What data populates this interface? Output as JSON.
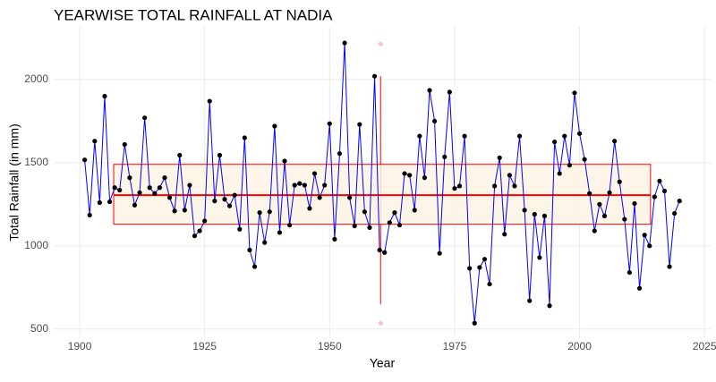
{
  "chart_data": {
    "type": "line",
    "title": "YEARWISE TOTAL RAINFALL AT NADIA",
    "x_label": "Year",
    "y_label": "Total Rainfall (in mm)",
    "x": [
      1901,
      1902,
      1903,
      1904,
      1905,
      1906,
      1907,
      1908,
      1909,
      1910,
      1911,
      1912,
      1913,
      1914,
      1915,
      1916,
      1917,
      1918,
      1919,
      1920,
      1921,
      1922,
      1923,
      1924,
      1925,
      1926,
      1927,
      1928,
      1929,
      1930,
      1931,
      1932,
      1933,
      1934,
      1935,
      1936,
      1937,
      1938,
      1939,
      1940,
      1941,
      1942,
      1943,
      1944,
      1945,
      1946,
      1947,
      1948,
      1949,
      1950,
      1951,
      1952,
      1953,
      1954,
      1955,
      1956,
      1957,
      1958,
      1959,
      1960,
      1961,
      1962,
      1963,
      1964,
      1965,
      1966,
      1967,
      1968,
      1969,
      1970,
      1971,
      1972,
      1973,
      1974,
      1975,
      1976,
      1977,
      1978,
      1979,
      1980,
      1981,
      1982,
      1983,
      1984,
      1985,
      1986,
      1987,
      1988,
      1989,
      1990,
      1991,
      1992,
      1993,
      1994,
      1995,
      1996,
      1997,
      1998,
      1999,
      2000,
      2001,
      2002,
      2003,
      2004,
      2005,
      2006,
      2007,
      2008,
      2009,
      2010,
      2011,
      2012,
      2013,
      2014,
      2015,
      2016,
      2017,
      2018,
      2019,
      2020
    ],
    "series": [
      {
        "color": "#0000ff",
        "marker_color": "#000000",
        "values": [
          1517,
          1185,
          1630,
          1260,
          1900,
          1265,
          1350,
          1335,
          1610,
          1410,
          1245,
          1320,
          1770,
          1350,
          1315,
          1350,
          1410,
          1290,
          1210,
          1545,
          1215,
          1365,
          1060,
          1090,
          1150,
          1870,
          1270,
          1545,
          1280,
          1240,
          1305,
          1100,
          1650,
          975,
          875,
          1200,
          1020,
          1205,
          1720,
          1080,
          1510,
          1125,
          1365,
          1375,
          1365,
          1225,
          1435,
          1290,
          1365,
          1735,
          1040,
          1555,
          2220,
          1290,
          1120,
          1730,
          1205,
          1110,
          2020,
          975,
          960,
          1140,
          1200,
          1125,
          1435,
          1425,
          1215,
          1660,
          1410,
          1935,
          1750,
          955,
          1535,
          1925,
          1345,
          1360,
          1660,
          865,
          535,
          870,
          920,
          770,
          1360,
          1530,
          1070,
          1425,
          1360,
          1660,
          1215,
          670,
          1190,
          930,
          1180,
          640,
          1625,
          1435,
          1660,
          1485,
          1920,
          1675,
          1520,
          1315,
          1090,
          1250,
          1180,
          1320,
          1630,
          1385,
          1160,
          840,
          1255,
          745,
          1065,
          1000,
          1295,
          1390,
          1330,
          875,
          1195,
          1270
        ]
      }
    ],
    "boxplot": {
      "x_center": 1960.2,
      "x_range": [
        1906.8,
        2014.2
      ],
      "q1": 1130,
      "median": 1305,
      "q3": 1490,
      "whisker_low": 650,
      "whisker_high": 2020,
      "outliers": [
        2215,
        535
      ],
      "color": "#ff0000",
      "fill": "#fdf3e3",
      "outlier_color": "#ffc0cb"
    },
    "xlim": [
      1894.8,
      2026.4
    ],
    "ylim": [
      445,
      2317
    ],
    "xticks": [
      1900,
      1925,
      1950,
      1975,
      2000,
      2025
    ],
    "yticks": [
      500,
      1000,
      1500,
      2000
    ],
    "grid": true
  }
}
